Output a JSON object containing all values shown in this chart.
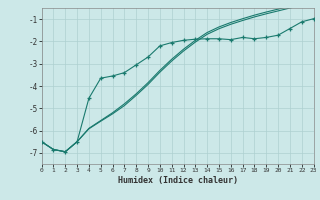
{
  "xlabel": "Humidex (Indice chaleur)",
  "bg_color": "#cce8e8",
  "grid_color": "#aed0d0",
  "line_color": "#1a7a6e",
  "x_data": [
    0,
    1,
    2,
    3,
    4,
    5,
    6,
    7,
    8,
    9,
    10,
    11,
    12,
    13,
    14,
    15,
    16,
    17,
    18,
    19,
    20,
    21,
    22,
    23
  ],
  "line1_y": [
    -6.5,
    -6.85,
    -6.95,
    -6.5,
    -4.55,
    -3.65,
    -3.55,
    -3.4,
    -3.05,
    -2.7,
    -2.2,
    -2.05,
    -1.95,
    -1.9,
    -1.88,
    -1.88,
    -1.92,
    -1.82,
    -1.88,
    -1.82,
    -1.72,
    -1.42,
    -1.12,
    -0.98
  ],
  "line2_y": [
    -6.5,
    -6.85,
    -6.95,
    -6.5,
    -5.9,
    -5.55,
    -5.2,
    -4.8,
    -4.35,
    -3.85,
    -3.3,
    -2.8,
    -2.35,
    -1.95,
    -1.6,
    -1.35,
    -1.15,
    -0.98,
    -0.82,
    -0.68,
    -0.55,
    -0.42,
    -0.3,
    -0.18
  ],
  "line3_y": [
    -6.5,
    -6.85,
    -6.95,
    -6.5,
    -5.92,
    -5.58,
    -5.25,
    -4.88,
    -4.42,
    -3.93,
    -3.38,
    -2.88,
    -2.43,
    -2.03,
    -1.68,
    -1.43,
    -1.23,
    -1.06,
    -0.9,
    -0.76,
    -0.63,
    -0.5,
    -0.38,
    -0.26
  ],
  "xlim": [
    0,
    23
  ],
  "ylim": [
    -7.5,
    -0.5
  ],
  "yticks": [
    -7,
    -6,
    -5,
    -4,
    -3,
    -2,
    -1
  ],
  "xticks": [
    0,
    1,
    2,
    3,
    4,
    5,
    6,
    7,
    8,
    9,
    10,
    11,
    12,
    13,
    14,
    15,
    16,
    17,
    18,
    19,
    20,
    21,
    22,
    23
  ]
}
